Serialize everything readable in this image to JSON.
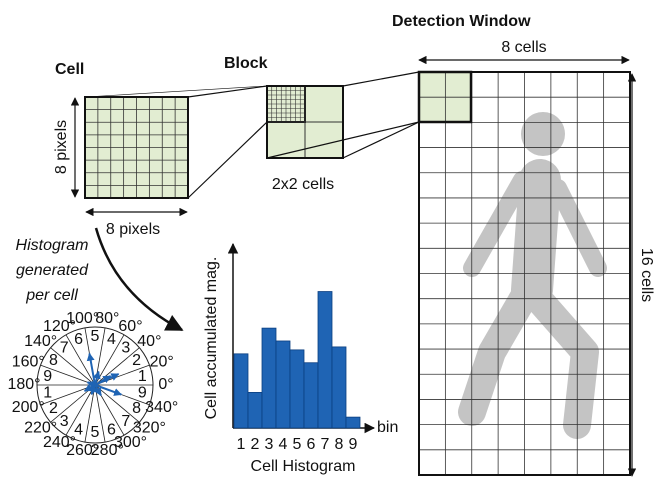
{
  "cell": {
    "title": "Cell",
    "height_label": "8 pixels",
    "width_label": "8 pixels"
  },
  "block": {
    "title": "Block",
    "label": "2x2 cells"
  },
  "window": {
    "title": "Detection Window",
    "width_label": "8 cells",
    "height_label": "16 cells"
  },
  "caption": [
    "Histogram",
    "generated",
    "per cell"
  ],
  "polar": {
    "angles": [
      "0°",
      "20°",
      "40°",
      "60°",
      "80°",
      "100°",
      "120°",
      "140°",
      "160°",
      "180°",
      "200°",
      "220°",
      "240°",
      "260°",
      "280°",
      "300°",
      "320°",
      "340°"
    ],
    "bins": [
      "1",
      "2",
      "3",
      "4",
      "5",
      "6",
      "7",
      "8",
      "9"
    ]
  },
  "chart_data": {
    "type": "bar",
    "title": "Cell Histogram",
    "ylabel": "Cell accumulated mag.",
    "xlabel": "bin",
    "categories": [
      "1",
      "2",
      "3",
      "4",
      "5",
      "6",
      "7",
      "8",
      "9"
    ],
    "values": [
      75,
      36,
      101,
      88,
      79,
      66,
      138,
      82,
      11
    ],
    "color": "#1f64b4",
    "ylim": [
      0,
      180
    ]
  }
}
